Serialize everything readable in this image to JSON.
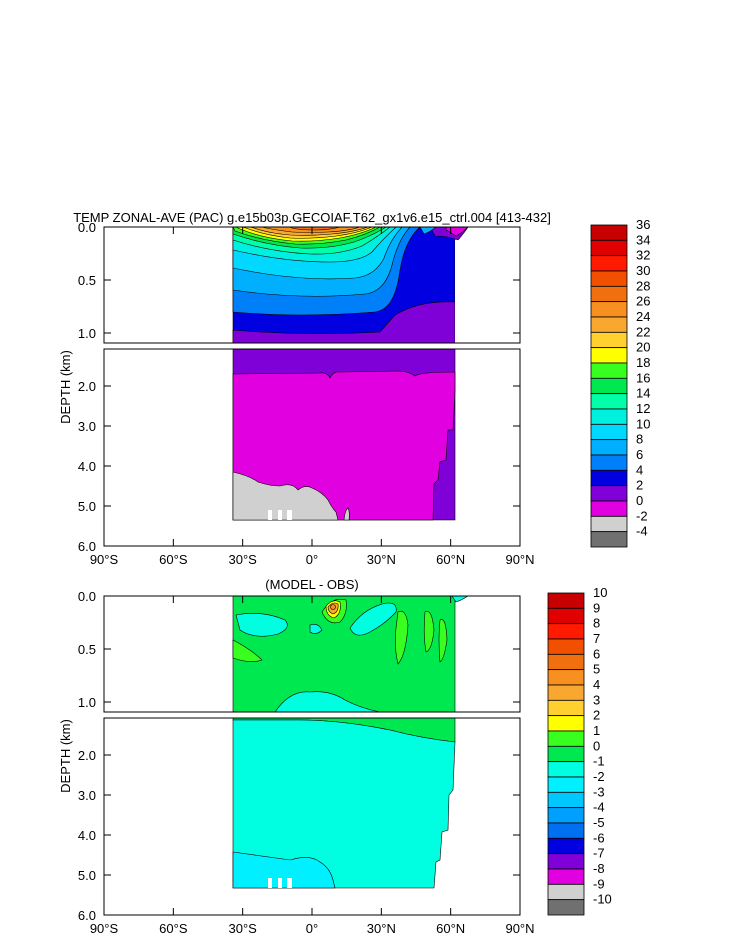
{
  "top": {
    "title": "TEMP ZONAL-AVE (PAC) g.e15b03p.GECOIAF.T62_gx1v6.e15_ctrl.004 [413-432]",
    "ylabel": "DEPTH (km)",
    "upper_ticks": [
      "0.0",
      "0.5",
      "1.0"
    ],
    "lower_ticks": [
      "2.0",
      "3.0",
      "4.0",
      "5.0",
      "6.0"
    ],
    "x_ticks": [
      "90°S",
      "60°S",
      "30°S",
      "0°",
      "30°N",
      "60°N",
      "90°N"
    ]
  },
  "bottom": {
    "title": "(MODEL - OBS)",
    "ylabel": "DEPTH (km)",
    "upper_ticks": [
      "0.0",
      "0.5",
      "1.0"
    ],
    "lower_ticks": [
      "2.0",
      "3.0",
      "4.0",
      "5.0",
      "6.0"
    ],
    "x_ticks": [
      "90°S",
      "60°S",
      "30°S",
      "0°",
      "30°N",
      "60°N",
      "90°N"
    ]
  },
  "colorbar_top": {
    "labels": [
      "36",
      "34",
      "32",
      "30",
      "28",
      "26",
      "24",
      "22",
      "20",
      "18",
      "16",
      "14",
      "12",
      "10",
      "8",
      "6",
      "4",
      "2",
      "0",
      "-2",
      "-4"
    ],
    "colors": [
      "#c80000",
      "#e00000",
      "#ff1a00",
      "#f05000",
      "#f07010",
      "#f89020",
      "#f8a830",
      "#ffd030",
      "#ffff00",
      "#38ff20",
      "#00e850",
      "#00ffa8",
      "#00f0e0",
      "#00d8ff",
      "#00b0ff",
      "#0080f8",
      "#0000e0",
      "#8000d8",
      "#e000e0",
      "#d0d0d0",
      "#707070"
    ]
  },
  "colorbar_bottom": {
    "labels": [
      "10",
      "9",
      "8",
      "7",
      "6",
      "5",
      "4",
      "3",
      "2",
      "1",
      "0",
      "-1",
      "-2",
      "-3",
      "-4",
      "-5",
      "-6",
      "-7",
      "-8",
      "-9",
      "-10"
    ],
    "colors": [
      "#c80000",
      "#e00000",
      "#ff1a00",
      "#f05000",
      "#f07010",
      "#f89020",
      "#f8a830",
      "#ffd030",
      "#ffff00",
      "#38ff20",
      "#00e850",
      "#00ffe0",
      "#00f0ff",
      "#00c8ff",
      "#00a0ff",
      "#0070f0",
      "#0000e0",
      "#8000d8",
      "#e000e0",
      "#d0d0d0",
      "#707070"
    ]
  },
  "chart_data": [
    {
      "type": "heatmap",
      "title": "TEMP ZONAL-AVE (PAC) g.e15b03p.GECOIAF.T62_gx1v6.e15_ctrl.004 [413-432]",
      "xlabel": "",
      "ylabel": "DEPTH (km)",
      "x_range": [
        "90°S",
        "90°N"
      ],
      "y_range_km": [
        0.0,
        6.0
      ],
      "data_extent_lat": [
        -34,
        64
      ],
      "levels": [
        -4,
        -2,
        0,
        2,
        4,
        6,
        8,
        10,
        12,
        14,
        16,
        18,
        20,
        22,
        24,
        26,
        28,
        30,
        32,
        34,
        36
      ],
      "profiles": [
        {
          "lat": -20,
          "depth_km": [
            0.0,
            0.1,
            0.2,
            0.3,
            0.5,
            0.8,
            1.0,
            1.5,
            3.0,
            5.0
          ],
          "temp": [
            25,
            21,
            17,
            15,
            12,
            8,
            5,
            3,
            1.5,
            0.5
          ]
        },
        {
          "lat": 0,
          "depth_km": [
            0.0,
            0.1,
            0.2,
            0.3,
            0.5,
            0.8,
            1.0,
            1.5,
            3.0,
            5.0
          ],
          "temp": [
            29,
            25,
            19,
            14,
            10,
            7,
            5,
            3,
            1.5,
            0.5
          ]
        },
        {
          "lat": 30,
          "depth_km": [
            0.0,
            0.1,
            0.2,
            0.3,
            0.5,
            0.8,
            1.0,
            1.5,
            3.0,
            5.0
          ],
          "temp": [
            22,
            18,
            15,
            12,
            9,
            6,
            4.5,
            3,
            1.5,
            0.5
          ]
        },
        {
          "lat": 55,
          "depth_km": [
            0.0,
            0.1,
            0.3,
            0.5,
            1.0,
            1.5,
            3.0
          ],
          "temp": [
            5,
            4.5,
            4,
            3.5,
            3,
            2.5,
            1.5
          ]
        }
      ]
    },
    {
      "type": "heatmap",
      "title": "(MODEL - OBS)",
      "xlabel": "",
      "ylabel": "DEPTH (km)",
      "x_range": [
        "90°S",
        "90°N"
      ],
      "y_range_km": [
        0.0,
        6.0
      ],
      "data_extent_lat": [
        -34,
        64
      ],
      "levels": [
        -10,
        -9,
        -8,
        -7,
        -6,
        -5,
        -4,
        -3,
        -2,
        -1,
        0,
        1,
        2,
        3,
        4,
        5,
        6,
        7,
        8,
        9,
        10
      ],
      "regions": [
        {
          "desc": "upper ocean mostly",
          "value_range": [
            0,
            1
          ]
        },
        {
          "desc": "deep ocean below ~1.2 km",
          "value_range": [
            -1,
            0
          ]
        },
        {
          "desc": "max near 10N at 0.1 km",
          "value_range": [
            3,
            4
          ]
        }
      ]
    }
  ]
}
